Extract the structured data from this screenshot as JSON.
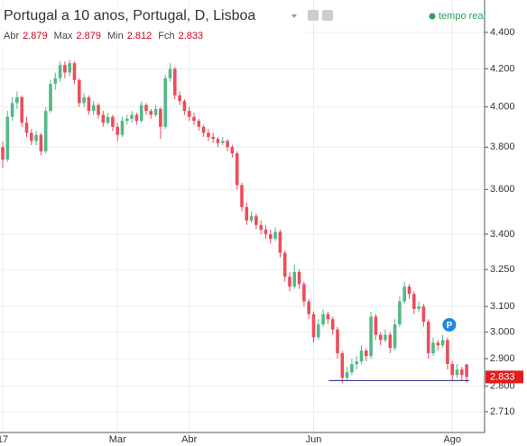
{
  "chart_data": {
    "type": "candlestick",
    "title": "Portugal a 10 anos, Portugal, D, Lisboa",
    "status": "tempo real",
    "ohlc_header": [
      {
        "label": "Abr",
        "value": 2.879
      },
      {
        "label": "Max",
        "value": 2.879
      },
      {
        "label": "Min",
        "value": 2.812
      },
      {
        "label": "Fch",
        "value": 2.833
      }
    ],
    "last_price": 2.833,
    "support_line": 2.82,
    "marker_label": "P",
    "up_color": "#53b987",
    "down_color": "#eb4d5c",
    "log_scale": true,
    "grid": true,
    "ylim": [
      2.639,
      4.586
    ],
    "yticks": [
      {
        "value": 4.4,
        "label": "4.400"
      },
      {
        "value": 4.2,
        "label": "4.200"
      },
      {
        "value": 4.0,
        "label": "4.000"
      },
      {
        "value": 3.8,
        "label": "3.800"
      },
      {
        "value": 3.6,
        "label": "3.600"
      },
      {
        "value": 3.4,
        "label": "3.400"
      },
      {
        "value": 3.25,
        "label": "3.250"
      },
      {
        "value": 3.1,
        "label": "3.100"
      },
      {
        "value": 3.0,
        "label": "3.000"
      },
      {
        "value": 2.9,
        "label": "2.900"
      },
      {
        "value": 2.8,
        "label": "2.800"
      },
      {
        "value": 2.71,
        "label": "2.710"
      }
    ],
    "categories": [
      "17",
      null,
      null,
      null,
      null,
      null,
      null,
      null,
      null,
      null,
      null,
      null,
      null,
      null,
      null,
      null,
      null,
      null,
      null,
      null,
      null,
      null,
      null,
      null,
      "Mar",
      null,
      null,
      null,
      null,
      null,
      null,
      null,
      null,
      null,
      null,
      null,
      null,
      null,
      null,
      "Abr",
      null,
      null,
      null,
      null,
      null,
      null,
      null,
      null,
      null,
      null,
      null,
      null,
      null,
      null,
      null,
      null,
      null,
      null,
      null,
      null,
      null,
      null,
      null,
      null,
      null,
      "Jun",
      null,
      null,
      null,
      null,
      null,
      null,
      null,
      null,
      null,
      null,
      null,
      null,
      null,
      null,
      null,
      null,
      null,
      null,
      null,
      null,
      null,
      null,
      null,
      null,
      null,
      null,
      null,
      null,
      "Ago",
      null,
      null,
      null
    ],
    "candles": [
      [
        3.8,
        3.83,
        3.7,
        3.74
      ],
      [
        3.74,
        3.98,
        3.73,
        3.95
      ],
      [
        3.95,
        4.05,
        3.93,
        4.02
      ],
      [
        4.02,
        4.08,
        3.99,
        4.05
      ],
      [
        4.05,
        4.06,
        3.9,
        3.92
      ],
      [
        3.92,
        3.95,
        3.85,
        3.87
      ],
      [
        3.87,
        3.89,
        3.81,
        3.83
      ],
      [
        3.83,
        3.88,
        3.81,
        3.86
      ],
      [
        3.86,
        3.87,
        3.76,
        3.78
      ],
      [
        3.78,
        4.0,
        3.77,
        3.98
      ],
      [
        3.98,
        4.14,
        3.97,
        4.12
      ],
      [
        4.12,
        4.18,
        4.09,
        4.15
      ],
      [
        4.15,
        4.24,
        4.13,
        4.22
      ],
      [
        4.22,
        4.24,
        4.15,
        4.18
      ],
      [
        4.18,
        4.25,
        4.16,
        4.23
      ],
      [
        4.23,
        4.24,
        4.12,
        4.14
      ],
      [
        4.14,
        4.15,
        4.0,
        4.02
      ],
      [
        4.02,
        4.07,
        4.0,
        4.05
      ],
      [
        4.05,
        4.06,
        3.96,
        3.98
      ],
      [
        3.98,
        4.03,
        3.96,
        4.01
      ],
      [
        4.01,
        4.02,
        3.94,
        3.96
      ],
      [
        3.96,
        3.98,
        3.9,
        3.92
      ],
      [
        3.92,
        3.97,
        3.91,
        3.95
      ],
      [
        3.95,
        3.96,
        3.88,
        3.9
      ],
      [
        3.9,
        3.92,
        3.83,
        3.86
      ],
      [
        3.86,
        3.95,
        3.85,
        3.93
      ],
      [
        3.93,
        3.96,
        3.91,
        3.94
      ],
      [
        3.94,
        3.98,
        3.92,
        3.96
      ],
      [
        3.96,
        3.97,
        3.91,
        3.93
      ],
      [
        3.93,
        4.03,
        3.92,
        4.01
      ],
      [
        4.01,
        4.02,
        3.96,
        3.98
      ],
      [
        3.98,
        3.99,
        3.94,
        3.96
      ],
      [
        3.96,
        4.01,
        3.95,
        3.99
      ],
      [
        3.99,
        4.0,
        3.84,
        3.9
      ],
      [
        3.9,
        4.17,
        3.89,
        4.15
      ],
      [
        4.15,
        4.23,
        4.13,
        4.2
      ],
      [
        4.2,
        4.21,
        4.04,
        4.06
      ],
      [
        4.06,
        4.08,
        4.01,
        4.03
      ],
      [
        4.03,
        4.04,
        3.96,
        3.98
      ],
      [
        3.98,
        4.0,
        3.93,
        3.95
      ],
      [
        3.95,
        3.97,
        3.91,
        3.93
      ],
      [
        3.93,
        3.94,
        3.88,
        3.9
      ],
      [
        3.9,
        3.91,
        3.85,
        3.87
      ],
      [
        3.87,
        3.89,
        3.83,
        3.85
      ],
      [
        3.85,
        3.87,
        3.82,
        3.84
      ],
      [
        3.84,
        3.85,
        3.8,
        3.82
      ],
      [
        3.82,
        3.85,
        3.81,
        3.83
      ],
      [
        3.83,
        3.84,
        3.78,
        3.8
      ],
      [
        3.8,
        3.81,
        3.75,
        3.77
      ],
      [
        3.77,
        3.78,
        3.6,
        3.62
      ],
      [
        3.62,
        3.63,
        3.5,
        3.52
      ],
      [
        3.52,
        3.54,
        3.44,
        3.46
      ],
      [
        3.46,
        3.5,
        3.45,
        3.48
      ],
      [
        3.48,
        3.49,
        3.42,
        3.44
      ],
      [
        3.44,
        3.46,
        3.4,
        3.42
      ],
      [
        3.42,
        3.44,
        3.38,
        3.4
      ],
      [
        3.4,
        3.42,
        3.36,
        3.38
      ],
      [
        3.38,
        3.43,
        3.37,
        3.41
      ],
      [
        3.41,
        3.42,
        3.3,
        3.32
      ],
      [
        3.32,
        3.33,
        3.2,
        3.22
      ],
      [
        3.22,
        3.24,
        3.16,
        3.18
      ],
      [
        3.18,
        3.27,
        3.17,
        3.24
      ],
      [
        3.24,
        3.25,
        3.17,
        3.19
      ],
      [
        3.19,
        3.2,
        3.1,
        3.12
      ],
      [
        3.12,
        3.13,
        3.05,
        3.07
      ],
      [
        3.07,
        3.08,
        2.96,
        2.98
      ],
      [
        2.98,
        3.05,
        2.97,
        3.03
      ],
      [
        3.03,
        3.09,
        3.02,
        3.07
      ],
      [
        3.07,
        3.08,
        3.03,
        3.05
      ],
      [
        3.05,
        3.06,
        2.99,
        3.01
      ],
      [
        3.01,
        3.02,
        2.9,
        2.92
      ],
      [
        2.92,
        2.93,
        2.81,
        2.83
      ],
      [
        2.83,
        2.87,
        2.82,
        2.85
      ],
      [
        2.85,
        2.9,
        2.84,
        2.88
      ],
      [
        2.88,
        2.91,
        2.86,
        2.89
      ],
      [
        2.89,
        2.95,
        2.88,
        2.93
      ],
      [
        2.93,
        2.94,
        2.89,
        2.91
      ],
      [
        2.91,
        3.08,
        2.9,
        3.06
      ],
      [
        3.06,
        3.07,
        2.97,
        2.99
      ],
      [
        2.99,
        3.0,
        2.95,
        2.97
      ],
      [
        2.97,
        3.01,
        2.96,
        2.99
      ],
      [
        2.99,
        3.0,
        2.92,
        2.94
      ],
      [
        2.94,
        3.05,
        2.93,
        3.03
      ],
      [
        3.03,
        3.14,
        3.02,
        3.12
      ],
      [
        3.12,
        3.2,
        3.11,
        3.18
      ],
      [
        3.18,
        3.19,
        3.13,
        3.15
      ],
      [
        3.15,
        3.16,
        3.07,
        3.09
      ],
      [
        3.09,
        3.12,
        3.08,
        3.1
      ],
      [
        3.1,
        3.11,
        3.02,
        3.04
      ],
      [
        3.04,
        3.05,
        2.9,
        2.92
      ],
      [
        2.92,
        2.98,
        2.91,
        2.96
      ],
      [
        2.96,
        2.97,
        2.93,
        2.95
      ],
      [
        2.95,
        2.99,
        2.94,
        2.97
      ],
      [
        2.97,
        2.98,
        2.86,
        2.88
      ],
      [
        2.88,
        2.89,
        2.82,
        2.84
      ],
      [
        2.84,
        2.88,
        2.83,
        2.86
      ],
      [
        2.86,
        2.87,
        2.82,
        2.84
      ],
      [
        2.879,
        2.879,
        2.812,
        2.833
      ]
    ]
  }
}
